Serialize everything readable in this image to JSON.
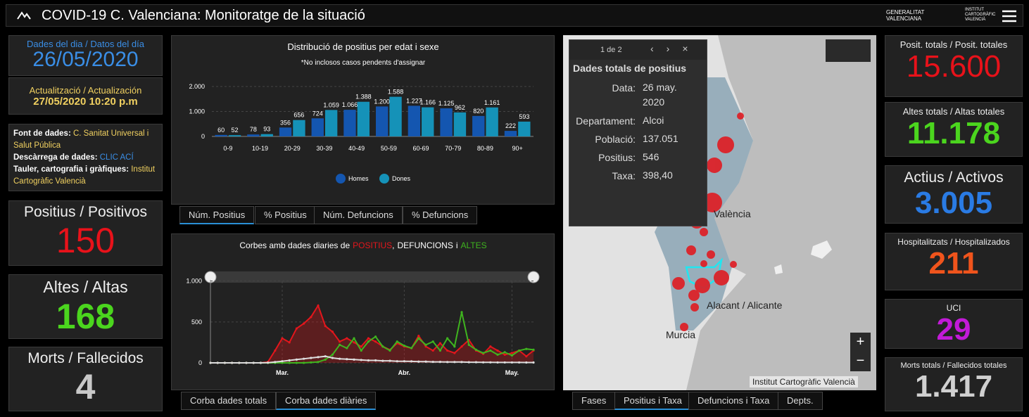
{
  "header": {
    "title": "COVID-19 C. Valenciana: Monitoratge de la situació",
    "logo_gva": "GENERALITAT VALENCIANA",
    "logo_icv": "INSTITUT CARTOGRÀFIC VALENCIÀ"
  },
  "left": {
    "date_label": "Dades del dia / Datos del día",
    "date": "26/05/2020",
    "update_label": "Actualització / Actualización",
    "update": "27/05/2020 10:20 p.m",
    "sources": [
      {
        "label": "Font de dades:",
        "value": "C. Sanitat Universal i Salut Pública"
      },
      {
        "label": "Descàrrega de dades:",
        "value": "CLIC ACÍ"
      },
      {
        "label": "Tauler, cartografia i gràfiques:",
        "value": "Institut Cartogràfic Valencià"
      }
    ],
    "cards": [
      {
        "label": "Positius / Positivos",
        "value": "150"
      },
      {
        "label": "Altes / Altas",
        "value": "168"
      },
      {
        "label": "Morts / Fallecidos",
        "value": "4"
      }
    ]
  },
  "right": {
    "cards": [
      {
        "label": "Posit. totals / Posit. totales",
        "value": "15.600"
      },
      {
        "label": "Altes totals / Altas totales",
        "value": "11.178"
      },
      {
        "label": "Actius / Activos",
        "value": "3.005"
      },
      {
        "label": "Hospitalitzats / Hospitalizados",
        "value": "211"
      },
      {
        "label": "UCI",
        "value": "29"
      },
      {
        "label": "Morts totals / Fallecidos totales",
        "value": "1.417"
      }
    ]
  },
  "chart_data": [
    {
      "type": "bar",
      "title": "Distribució de positius per edat i sexe",
      "subtitle": "*No inclosos casos pendents d'assignar",
      "categories": [
        "0-9",
        "10-19",
        "20-29",
        "30-39",
        "40-49",
        "50-59",
        "60-69",
        "70-79",
        "80-89",
        "90+"
      ],
      "series": [
        {
          "name": "Homes",
          "color": "#1456b0",
          "values": [
            60,
            78,
            356,
            724,
            1066,
            1200,
            1227,
            1125,
            820,
            222
          ],
          "value_labels": [
            "60",
            "78",
            "356",
            "724",
            "1.066",
            "1.200",
            "1.227",
            "1.125",
            "820",
            "222"
          ]
        },
        {
          "name": "Dones",
          "color": "#1592b8",
          "values": [
            52,
            93,
            656,
            1059,
            1388,
            1588,
            1166,
            962,
            1161,
            593
          ],
          "value_labels": [
            "52",
            "93",
            "656",
            "1.059",
            "1.388",
            "1.588",
            "1.166",
            "962",
            "1.161",
            "593"
          ]
        }
      ],
      "ylim": [
        0,
        2000
      ],
      "yticks": [
        0,
        {
          "value": 1000,
          "label": "1.000"
        },
        {
          "value": 2000,
          "label": "2.000"
        }
      ],
      "grid": true,
      "legend": "bottom"
    },
    {
      "type": "line",
      "title_parts": [
        "Corbes amb dades diaries de",
        ",",
        "i"
      ],
      "categories": [
        null,
        null,
        null,
        null,
        null,
        null,
        null,
        null,
        null,
        null,
        "Mar.",
        null,
        null,
        null,
        null,
        null,
        null,
        null,
        null,
        null,
        null,
        null,
        null,
        null,
        null,
        null,
        null,
        "Abr.",
        null,
        null,
        null,
        null,
        null,
        null,
        null,
        null,
        null,
        null,
        null,
        null,
        null,
        null,
        "May.",
        null,
        null,
        null
      ],
      "series": [
        {
          "name": "POSITIUS",
          "color": "#e3161c",
          "values": [
            0,
            0,
            0,
            0,
            0,
            0,
            0,
            0,
            10,
            150,
            300,
            250,
            420,
            480,
            560,
            700,
            450,
            380,
            260,
            300,
            250,
            200,
            300,
            260,
            200,
            160,
            240,
            200,
            180,
            330,
            200,
            150,
            240,
            150,
            120,
            200,
            280,
            150,
            110,
            200,
            150,
            100,
            120,
            150,
            80,
            150
          ]
        },
        {
          "name": "DEFUNCIONS",
          "color": "#dddddd",
          "values": [
            0,
            0,
            0,
            0,
            0,
            0,
            0,
            0,
            2,
            10,
            20,
            30,
            40,
            50,
            60,
            70,
            80,
            60,
            50,
            45,
            40,
            35,
            30,
            30,
            25,
            25,
            20,
            20,
            18,
            15,
            15,
            12,
            12,
            10,
            10,
            10,
            8,
            8,
            6,
            6,
            5,
            5,
            5,
            5,
            4,
            4
          ]
        },
        {
          "name": "ALTES",
          "color": "#3fb41f",
          "values": [
            0,
            0,
            0,
            0,
            0,
            0,
            0,
            0,
            0,
            0,
            0,
            0,
            0,
            0,
            5,
            10,
            40,
            100,
            220,
            180,
            300,
            150,
            260,
            320,
            200,
            150,
            260,
            210,
            180,
            300,
            220,
            260,
            150,
            300,
            200,
            620,
            220,
            160,
            120,
            150,
            100,
            130,
            90,
            150,
            170,
            160
          ]
        }
      ],
      "ylim": [
        0,
        1100
      ],
      "yticks": [
        0,
        500,
        {
          "value": 1000,
          "label": "1.000"
        }
      ],
      "grid": true
    }
  ],
  "chart_tabs": [
    "Núm. Positius",
    "% Positius",
    "Núm. Defuncions",
    "% Defuncions"
  ],
  "curve_tabs": [
    "Corba dades totals",
    "Corba dades diàries"
  ],
  "map": {
    "popup": {
      "counter": "1 de 2",
      "title": "Dades totals de positius",
      "fields": [
        {
          "label": "Data:",
          "value": "26 may. 2020"
        },
        {
          "label": "Departament:",
          "value": "Alcoi"
        },
        {
          "label": "Població:",
          "value": "137.051"
        },
        {
          "label": "Positius:",
          "value": "546"
        },
        {
          "label": "Taxa:",
          "value": "398,40"
        }
      ]
    },
    "places": [
      "València",
      "Alacant / Alicante",
      "Murcia"
    ],
    "attribution": "Institut Cartogràfic Valencià",
    "tabs": [
      "Fases",
      "Positius i Taxa",
      "Defuncions i Taxa",
      "Depts."
    ]
  }
}
